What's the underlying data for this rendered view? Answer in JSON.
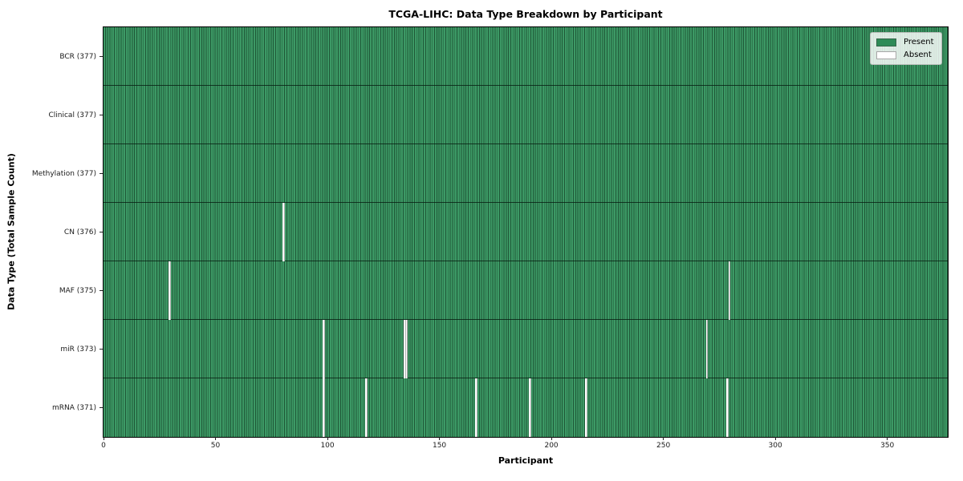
{
  "chart_data": {
    "type": "heatmap",
    "title": "TCGA-LIHC: Data Type Breakdown by Participant",
    "xlabel": "Participant",
    "ylabel": "Data Type (Total Sample Count)",
    "n_participants": 377,
    "x_range": [
      0,
      377
    ],
    "xticks": [
      0,
      50,
      100,
      150,
      200,
      250,
      300,
      350
    ],
    "grid": false,
    "legend_position": "upper right",
    "legend": [
      {
        "label": "Present",
        "color": "#2e8b57"
      },
      {
        "label": "Absent",
        "color": "#ffffff"
      }
    ],
    "colors": {
      "present_cell": "#3c9965",
      "cell_edge": "#1f5737",
      "absent_cell": "#ffffff"
    },
    "rows": [
      {
        "label": "BCR (377)",
        "name": "BCR",
        "total": 377,
        "absent": []
      },
      {
        "label": "Clinical (377)",
        "name": "Clinical",
        "total": 377,
        "absent": []
      },
      {
        "label": "Methylation (377)",
        "name": "Methylation",
        "total": 377,
        "absent": []
      },
      {
        "label": "CN (376)",
        "name": "CN",
        "total": 376,
        "absent": [
          80
        ]
      },
      {
        "label": "MAF (375)",
        "name": "MAF",
        "total": 375,
        "absent": [
          29,
          279
        ]
      },
      {
        "label": "miR (373)",
        "name": "miR",
        "total": 373,
        "absent": [
          98,
          134,
          135,
          269
        ]
      },
      {
        "label": "mRNA (371)",
        "name": "mRNA",
        "total": 371,
        "absent": [
          98,
          117,
          166,
          190,
          215,
          278
        ]
      }
    ]
  }
}
